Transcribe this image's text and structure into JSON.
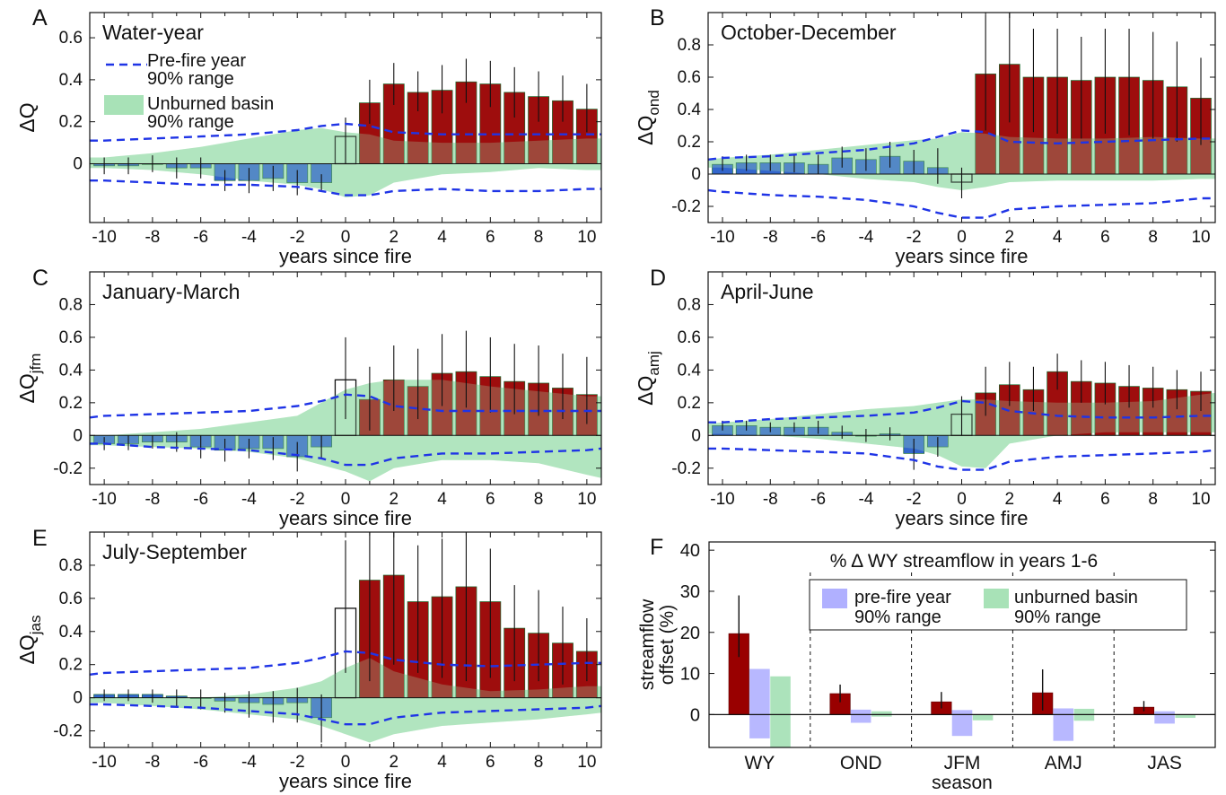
{
  "figure": {
    "colors": {
      "bar_pos": "#990000",
      "bar_neg": "#3366cc",
      "band_unburned": "#a8e2b7",
      "prefire_dash": "#1f34e6",
      "band_prefire": "#b0b0ff",
      "error_bar": "#111111"
    },
    "xlabel": "years since fire",
    "xticks": [
      -10,
      -8,
      -6,
      -4,
      -2,
      0,
      2,
      4,
      6,
      8,
      10
    ]
  },
  "chart_data": [
    {
      "id": "A",
      "type": "bar",
      "panel_letter": "A",
      "title": "Water-year",
      "ylabel": "ΔQ",
      "ylabel_sub": "",
      "ylim": [
        -0.28,
        0.72
      ],
      "yticks": [
        0,
        0.2,
        0.4,
        0.6
      ],
      "ytick_labels": [
        "0",
        "0.2",
        "0.4",
        "0.6"
      ],
      "xlim": [
        -10.6,
        10.6
      ],
      "xlabel": "years since fire",
      "grid": false,
      "legend": {
        "position": "top-left",
        "items": [
          {
            "kind": "dash",
            "label_line1": "Pre-fire year",
            "label_line2": "90% range"
          },
          {
            "kind": "band",
            "label_line1": "Unburned basin",
            "label_line2": "90% range"
          }
        ]
      },
      "x": [
        -10,
        -9,
        -8,
        -7,
        -6,
        -5,
        -4,
        -3,
        -2,
        -1,
        0,
        1,
        2,
        3,
        4,
        5,
        6,
        7,
        8,
        9,
        10
      ],
      "values": [
        -0.01,
        -0.01,
        0,
        -0.02,
        -0.02,
        -0.08,
        -0.08,
        -0.07,
        -0.09,
        -0.09,
        0.13,
        0.29,
        0.38,
        0.34,
        0.35,
        0.39,
        0.38,
        0.34,
        0.32,
        0.3,
        0.26
      ],
      "err_low": [
        -0.05,
        -0.05,
        -0.04,
        -0.07,
        -0.07,
        -0.13,
        -0.14,
        -0.13,
        -0.15,
        -0.13,
        0.0,
        0.19,
        0.28,
        0.25,
        0.24,
        0.29,
        0.27,
        0.22,
        0.2,
        0.2,
        0.15
      ],
      "err_high": [
        0.03,
        0.03,
        0.04,
        0.03,
        0.03,
        -0.03,
        -0.02,
        -0.01,
        -0.03,
        -0.05,
        0.22,
        0.4,
        0.48,
        0.44,
        0.47,
        0.5,
        0.49,
        0.46,
        0.44,
        0.42,
        0.38
      ],
      "unburned_band_x": [
        -10.6,
        -10,
        -8,
        -6,
        -4,
        -2,
        -1,
        0,
        1,
        2,
        4,
        6,
        8,
        10,
        10.6
      ],
      "unburned_band_high": [
        0.03,
        0.03,
        0.05,
        0.08,
        0.12,
        0.16,
        0.17,
        0.15,
        0.14,
        0.11,
        0.1,
        0.1,
        0.11,
        0.12,
        0.12
      ],
      "unburned_band_low": [
        -0.02,
        -0.02,
        -0.03,
        -0.05,
        -0.08,
        -0.1,
        -0.12,
        -0.16,
        -0.15,
        -0.09,
        -0.05,
        -0.04,
        -0.02,
        -0.03,
        -0.03
      ],
      "prefire_x": [
        -10.6,
        -10,
        -8,
        -6,
        -4,
        -2,
        -1,
        0,
        1,
        2,
        4,
        6,
        8,
        10,
        10.6
      ],
      "prefire_high": [
        0.11,
        0.11,
        0.12,
        0.13,
        0.14,
        0.16,
        0.18,
        0.19,
        0.18,
        0.15,
        0.14,
        0.14,
        0.14,
        0.14,
        0.14
      ],
      "prefire_low": [
        -0.08,
        -0.08,
        -0.09,
        -0.1,
        -0.1,
        -0.11,
        -0.13,
        -0.15,
        -0.15,
        -0.13,
        -0.12,
        -0.13,
        -0.13,
        -0.12,
        -0.12
      ]
    },
    {
      "id": "B",
      "type": "bar",
      "panel_letter": "B",
      "title": "October-December",
      "ylabel": "ΔQ",
      "ylabel_sub": "ond",
      "ylim": [
        -0.3,
        1.0
      ],
      "yticks": [
        -0.2,
        0,
        0.2,
        0.4,
        0.6,
        0.8
      ],
      "ytick_labels": [
        "-0.2",
        "0",
        "0.2",
        "0.4",
        "0.6",
        "0.8"
      ],
      "xlim": [
        -10.6,
        10.6
      ],
      "xlabel": "years since fire",
      "grid": false,
      "x": [
        -10,
        -9,
        -8,
        -7,
        -6,
        -5,
        -4,
        -3,
        -2,
        -1,
        0,
        1,
        2,
        3,
        4,
        5,
        6,
        7,
        8,
        9,
        10
      ],
      "values": [
        0.06,
        0.07,
        0.07,
        0.07,
        0.06,
        0.1,
        0.09,
        0.11,
        0.08,
        0.04,
        -0.05,
        0.62,
        0.68,
        0.6,
        0.6,
        0.58,
        0.6,
        0.6,
        0.58,
        0.54,
        0.47
      ],
      "err_low": [
        0.02,
        0.02,
        0.02,
        0.01,
        0.0,
        0.04,
        0.02,
        0.04,
        0.0,
        -0.06,
        -0.15,
        0.27,
        0.32,
        0.26,
        0.25,
        0.22,
        0.25,
        0.24,
        0.22,
        0.2,
        0.18
      ],
      "err_high": [
        0.11,
        0.12,
        0.12,
        0.12,
        0.12,
        0.17,
        0.16,
        0.2,
        0.15,
        0.16,
        0.04,
        0.98,
        1.0,
        0.9,
        0.9,
        0.85,
        0.9,
        0.9,
        0.88,
        0.82,
        0.72
      ],
      "unburned_band_x": [
        -10.6,
        -10,
        -8,
        -6,
        -4,
        -2,
        -1,
        0,
        1,
        2,
        4,
        6,
        8,
        10,
        10.6
      ],
      "unburned_band_high": [
        0.09,
        0.1,
        0.12,
        0.15,
        0.18,
        0.21,
        0.22,
        0.26,
        0.25,
        0.23,
        0.22,
        0.22,
        0.23,
        0.22,
        0.22
      ],
      "unburned_band_low": [
        0.04,
        0.04,
        0.02,
        0.0,
        -0.03,
        -0.05,
        -0.08,
        -0.1,
        -0.08,
        -0.05,
        -0.04,
        -0.04,
        -0.04,
        -0.03,
        -0.03
      ],
      "prefire_x": [
        -10.6,
        -10,
        -8,
        -6,
        -4,
        -2,
        -1,
        0,
        1,
        2,
        4,
        6,
        8,
        10,
        10.6
      ],
      "prefire_high": [
        0.09,
        0.1,
        0.11,
        0.13,
        0.15,
        0.19,
        0.23,
        0.27,
        0.26,
        0.2,
        0.19,
        0.2,
        0.21,
        0.22,
        0.22
      ],
      "prefire_low": [
        -0.1,
        -0.11,
        -0.13,
        -0.14,
        -0.16,
        -0.2,
        -0.24,
        -0.27,
        -0.27,
        -0.22,
        -0.2,
        -0.19,
        -0.18,
        -0.15,
        -0.15
      ]
    },
    {
      "id": "C",
      "type": "bar",
      "panel_letter": "C",
      "title": "January-March",
      "ylabel": "ΔQ",
      "ylabel_sub": "jfm",
      "ylim": [
        -0.3,
        1.0
      ],
      "yticks": [
        -0.2,
        0,
        0.2,
        0.4,
        0.6,
        0.8
      ],
      "ytick_labels": [
        "-0.2",
        "0",
        "0.2",
        "0.4",
        "0.6",
        "0.8"
      ],
      "xlim": [
        -10.6,
        10.6
      ],
      "xlabel": "years since fire",
      "grid": false,
      "x": [
        -10,
        -9,
        -8,
        -7,
        -6,
        -5,
        -4,
        -3,
        -2,
        -1,
        0,
        1,
        2,
        3,
        4,
        5,
        6,
        7,
        8,
        9,
        10
      ],
      "values": [
        -0.05,
        -0.05,
        -0.04,
        -0.04,
        -0.07,
        -0.09,
        -0.08,
        -0.08,
        -0.13,
        -0.07,
        0.34,
        0.22,
        0.34,
        0.3,
        0.38,
        0.39,
        0.36,
        0.33,
        0.32,
        0.29,
        0.25
      ],
      "err_low": [
        -0.09,
        -0.09,
        -0.08,
        -0.1,
        -0.14,
        -0.16,
        -0.14,
        -0.15,
        -0.22,
        -0.14,
        0.1,
        0.03,
        0.15,
        0.1,
        0.18,
        0.17,
        0.14,
        0.13,
        0.12,
        0.1,
        0.07
      ],
      "err_high": [
        -0.01,
        0.0,
        0.0,
        0.02,
        0.0,
        -0.02,
        -0.02,
        -0.01,
        -0.04,
        0.0,
        0.6,
        0.42,
        0.55,
        0.53,
        0.62,
        0.64,
        0.6,
        0.56,
        0.55,
        0.5,
        0.48
      ],
      "unburned_band_x": [
        -10.6,
        -10,
        -8,
        -6,
        -4,
        -2,
        -1,
        0,
        1,
        2,
        4,
        6,
        8,
        10,
        10.6
      ],
      "unburned_band_high": [
        0.0,
        0.0,
        0.02,
        0.04,
        0.08,
        0.12,
        0.2,
        0.28,
        0.32,
        0.34,
        0.34,
        0.3,
        0.27,
        0.24,
        0.24
      ],
      "unburned_band_low": [
        -0.06,
        -0.06,
        -0.07,
        -0.08,
        -0.1,
        -0.14,
        -0.18,
        -0.22,
        -0.28,
        -0.2,
        -0.15,
        -0.15,
        -0.17,
        -0.24,
        -0.26
      ],
      "prefire_x": [
        -10.6,
        -10,
        -8,
        -6,
        -4,
        -2,
        -1,
        0,
        1,
        2,
        4,
        6,
        8,
        10,
        10.6
      ],
      "prefire_high": [
        0.11,
        0.12,
        0.13,
        0.14,
        0.15,
        0.18,
        0.21,
        0.25,
        0.24,
        0.18,
        0.15,
        0.15,
        0.15,
        0.15,
        0.15
      ],
      "prefire_low": [
        -0.05,
        -0.05,
        -0.07,
        -0.08,
        -0.09,
        -0.12,
        -0.14,
        -0.18,
        -0.18,
        -0.14,
        -0.11,
        -0.11,
        -0.1,
        -0.09,
        -0.08
      ]
    },
    {
      "id": "D",
      "type": "bar",
      "panel_letter": "D",
      "title": "April-June",
      "ylabel": "ΔQ",
      "ylabel_sub": "amj",
      "ylim": [
        -0.3,
        1.0
      ],
      "yticks": [
        -0.2,
        0,
        0.2,
        0.4,
        0.6,
        0.8
      ],
      "ytick_labels": [
        "-0.2",
        "0",
        "0.2",
        "0.4",
        "0.6",
        "0.8"
      ],
      "xlim": [
        -10.6,
        10.6
      ],
      "xlabel": "years since fire",
      "grid": false,
      "x": [
        -10,
        -9,
        -8,
        -7,
        -6,
        -5,
        -4,
        -3,
        -2,
        -1,
        0,
        1,
        2,
        3,
        4,
        5,
        6,
        7,
        8,
        9,
        10
      ],
      "values": [
        0.06,
        0.06,
        0.05,
        0.05,
        0.05,
        0.02,
        0.0,
        0.01,
        -0.11,
        -0.07,
        0.13,
        0.26,
        0.31,
        0.28,
        0.39,
        0.33,
        0.32,
        0.3,
        0.29,
        0.28,
        0.27
      ],
      "err_low": [
        0.03,
        0.03,
        0.02,
        0.02,
        0.01,
        -0.02,
        -0.04,
        -0.03,
        -0.21,
        -0.13,
        0.0,
        0.12,
        0.18,
        0.15,
        0.28,
        0.2,
        0.19,
        0.17,
        0.17,
        0.16,
        0.15
      ],
      "err_high": [
        0.09,
        0.09,
        0.08,
        0.08,
        0.09,
        0.06,
        0.04,
        0.05,
        -0.02,
        -0.01,
        0.24,
        0.42,
        0.45,
        0.42,
        0.5,
        0.46,
        0.45,
        0.43,
        0.42,
        0.4,
        0.39
      ],
      "unburned_band_x": [
        -10.6,
        -10,
        -8,
        -6,
        -4,
        -2,
        -1,
        0,
        1,
        2,
        4,
        6,
        8,
        10,
        10.6
      ],
      "unburned_band_high": [
        0.07,
        0.08,
        0.1,
        0.13,
        0.16,
        0.18,
        0.2,
        0.22,
        0.22,
        0.21,
        0.2,
        0.2,
        0.21,
        0.25,
        0.26
      ],
      "unburned_band_low": [
        0.01,
        0.01,
        0.0,
        -0.02,
        -0.05,
        -0.08,
        -0.12,
        -0.19,
        -0.2,
        -0.05,
        0.0,
        0.02,
        0.02,
        0.02,
        0.02
      ],
      "prefire_x": [
        -10.6,
        -10,
        -8,
        -6,
        -4,
        -2,
        -1,
        0,
        1,
        2,
        4,
        6,
        8,
        10,
        10.6
      ],
      "prefire_high": [
        0.08,
        0.08,
        0.1,
        0.11,
        0.12,
        0.14,
        0.17,
        0.21,
        0.2,
        0.15,
        0.12,
        0.11,
        0.11,
        0.12,
        0.12
      ],
      "prefire_low": [
        -0.08,
        -0.08,
        -0.09,
        -0.1,
        -0.11,
        -0.15,
        -0.19,
        -0.21,
        -0.21,
        -0.16,
        -0.13,
        -0.12,
        -0.11,
        -0.1,
        -0.09
      ]
    },
    {
      "id": "E",
      "type": "bar",
      "panel_letter": "E",
      "title": "July-September",
      "ylabel": "ΔQ",
      "ylabel_sub": "jas",
      "ylim": [
        -0.3,
        1.0
      ],
      "yticks": [
        -0.2,
        0,
        0.2,
        0.4,
        0.6,
        0.8
      ],
      "ytick_labels": [
        "-0.2",
        "0",
        "0.2",
        "0.4",
        "0.6",
        "0.8"
      ],
      "xlim": [
        -10.6,
        10.6
      ],
      "xlabel": "years since fire",
      "grid": false,
      "x": [
        -10,
        -9,
        -8,
        -7,
        -6,
        -5,
        -4,
        -3,
        -2,
        -1,
        0,
        1,
        2,
        3,
        4,
        5,
        6,
        7,
        8,
        9,
        10
      ],
      "values": [
        0.02,
        0.02,
        0.02,
        0.01,
        0.0,
        -0.02,
        -0.03,
        -0.04,
        -0.03,
        -0.12,
        0.54,
        0.71,
        0.74,
        0.58,
        0.61,
        0.67,
        0.58,
        0.42,
        0.39,
        0.33,
        0.28
      ],
      "err_low": [
        -0.02,
        -0.02,
        -0.03,
        -0.05,
        -0.07,
        -0.09,
        -0.12,
        -0.15,
        -0.15,
        -0.27,
        0.15,
        0.1,
        0.2,
        0.15,
        0.12,
        0.1,
        0.12,
        0.1,
        0.1,
        0.08,
        0.1
      ],
      "err_high": [
        0.05,
        0.05,
        0.05,
        0.05,
        0.05,
        0.03,
        0.04,
        0.04,
        0.06,
        0.02,
        0.95,
        1.02,
        1.0,
        0.92,
        0.96,
        1.0,
        0.9,
        0.68,
        0.65,
        0.55,
        0.48
      ],
      "unburned_band_x": [
        -10.6,
        -10,
        -8,
        -6,
        -4,
        -2,
        -1,
        0,
        1,
        2,
        4,
        6,
        8,
        10,
        10.6
      ],
      "unburned_band_high": [
        0.0,
        0.0,
        0.0,
        0.0,
        0.02,
        0.06,
        0.1,
        0.18,
        0.24,
        0.16,
        0.08,
        0.04,
        0.05,
        0.07,
        0.07
      ],
      "unburned_band_low": [
        -0.03,
        -0.03,
        -0.05,
        -0.07,
        -0.1,
        -0.13,
        -0.17,
        -0.22,
        -0.27,
        -0.22,
        -0.17,
        -0.15,
        -0.13,
        -0.1,
        -0.09
      ],
      "prefire_x": [
        -10.6,
        -10,
        -8,
        -6,
        -4,
        -2,
        -1,
        0,
        1,
        2,
        4,
        6,
        8,
        10,
        10.6
      ],
      "prefire_high": [
        0.14,
        0.15,
        0.16,
        0.17,
        0.18,
        0.21,
        0.24,
        0.28,
        0.27,
        0.23,
        0.2,
        0.19,
        0.2,
        0.21,
        0.21
      ],
      "prefire_low": [
        -0.04,
        -0.04,
        -0.05,
        -0.06,
        -0.08,
        -0.1,
        -0.13,
        -0.16,
        -0.16,
        -0.12,
        -0.09,
        -0.08,
        -0.07,
        -0.06,
        -0.05
      ]
    },
    {
      "id": "F",
      "type": "bar",
      "panel_letter": "F",
      "title": "% Δ WY streamflow in years 1-6",
      "ylabel_line1": "streamflow",
      "ylabel_line2": "offset (%)",
      "xlabel": "season",
      "ylim": [
        -8,
        42
      ],
      "yticks": [
        0,
        10,
        20,
        30,
        40
      ],
      "ytick_labels": [
        "0",
        "10",
        "20",
        "30",
        "40"
      ],
      "categories": [
        "WY",
        "OND",
        "JFM",
        "AMJ",
        "JAS"
      ],
      "grid": false,
      "legend": {
        "position": "top-right",
        "items": [
          {
            "kind": "band_prefire",
            "label_line1": "pre-fire year",
            "label_line2": "90% range"
          },
          {
            "kind": "band_unburned",
            "label_line1": "unburned basin",
            "label_line2": "90% range"
          }
        ]
      },
      "series": [
        {
          "name": "",
          "role": "offset",
          "values": [
            19.7,
            5.1,
            3.1,
            5.3,
            1.8
          ],
          "err_low": [
            14.0,
            3.0,
            1.5,
            1.0,
            0.8
          ],
          "err_high": [
            29.0,
            7.3,
            5.5,
            11.0,
            3.3
          ]
        },
        {
          "name": "pre-fire year 90% range",
          "role": "prefire_range",
          "low": [
            -5.8,
            -2.0,
            -5.2,
            -6.4,
            -2.2
          ],
          "high": [
            11.1,
            1.2,
            1.1,
            1.5,
            0.8
          ]
        },
        {
          "name": "unburned basin 90% range",
          "role": "unburned_range",
          "low": [
            -8.0,
            -0.5,
            -1.4,
            -1.5,
            -0.8
          ],
          "high": [
            9.3,
            0.8,
            0.0,
            1.4,
            0.0
          ]
        }
      ]
    }
  ]
}
